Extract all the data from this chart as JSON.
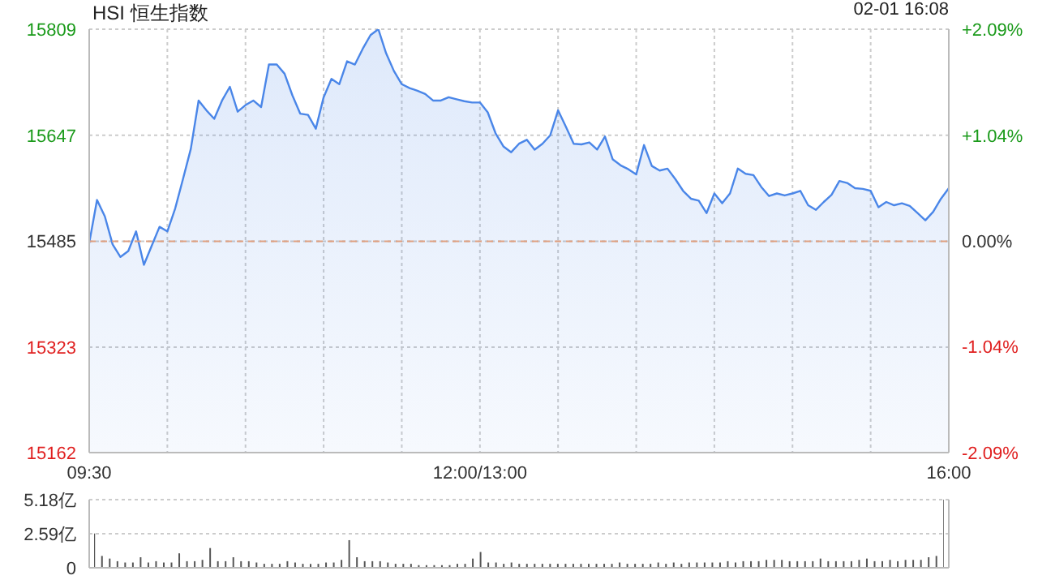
{
  "chart_data": [
    {
      "type": "area",
      "title": "HSI 恒生指数",
      "annotations": [
        "02-01 16:08"
      ],
      "color": "#4a86e8",
      "grid": true,
      "line_style": "solid",
      "categories": [
        "09:30",
        null,
        null,
        null,
        null,
        null,
        null,
        null,
        null,
        null,
        null,
        null,
        null,
        null,
        null,
        null,
        null,
        null,
        null,
        null,
        null,
        null,
        null,
        null,
        null,
        null,
        null,
        null,
        null,
        null,
        null,
        null,
        null,
        null,
        null,
        null,
        null,
        null,
        null,
        null,
        null,
        null,
        null,
        null,
        null,
        null,
        null,
        null,
        null,
        null,
        "12:00/13:00",
        null,
        null,
        null,
        null,
        null,
        null,
        null,
        null,
        null,
        null,
        null,
        null,
        null,
        null,
        null,
        null,
        null,
        null,
        null,
        null,
        null,
        null,
        null,
        null,
        null,
        null,
        null,
        null,
        null,
        null,
        null,
        null,
        null,
        null,
        null,
        null,
        null,
        null,
        null,
        null,
        null,
        null,
        null,
        null,
        null,
        null,
        null,
        null,
        null,
        null,
        null,
        null,
        null,
        null,
        null,
        null,
        null,
        null,
        null,
        "16:00"
      ],
      "values": [
        15482,
        15548,
        15523,
        15480,
        15461,
        15470,
        15500,
        15449,
        15478,
        15507,
        15500,
        15535,
        15580,
        15626,
        15700,
        15685,
        15672,
        15700,
        15721,
        15683,
        15693,
        15700,
        15690,
        15755,
        15755,
        15741,
        15708,
        15680,
        15678,
        15657,
        15705,
        15733,
        15725,
        15760,
        15755,
        15779,
        15800,
        15809,
        15772,
        15745,
        15725,
        15719,
        15715,
        15710,
        15700,
        15700,
        15705,
        15702,
        15699,
        15697,
        15697,
        15682,
        15650,
        15630,
        15621,
        15634,
        15640,
        15625,
        15634,
        15647,
        15685,
        15660,
        15634,
        15633,
        15636,
        15625,
        15645,
        15610,
        15601,
        15595,
        15587,
        15632,
        15600,
        15593,
        15596,
        15580,
        15562,
        15550,
        15547,
        15528,
        15558,
        15543,
        15558,
        15596,
        15588,
        15586,
        15568,
        15554,
        15558,
        15555,
        15558,
        15562,
        15540,
        15533,
        15545,
        15556,
        15577,
        15574,
        15566,
        15565,
        15562,
        15537,
        15545,
        15540,
        15543,
        15539,
        15528,
        15517,
        15530,
        15550,
        15566
      ],
      "ylim": [
        15162,
        15809
      ],
      "yticks": [
        15162,
        15323,
        15485,
        15647,
        15809
      ],
      "y2lim": [
        -2.09,
        2.09
      ],
      "y2ticks": [
        {
          "value": -2.09,
          "label": "-2.09%"
        },
        {
          "value": -1.04,
          "label": "-1.04%"
        },
        {
          "value": 0,
          "label": "0.00%"
        },
        {
          "value": 1.04,
          "label": "+1.04%"
        },
        {
          "value": 2.09,
          "label": "+2.09%"
        }
      ],
      "ref_lines": [
        {
          "axis": "y",
          "value": 15485,
          "color": "#e0a080",
          "line_style": "dashed"
        }
      ]
    },
    {
      "type": "bar",
      "color": "#555555",
      "grid": "y",
      "tick_labels": "y",
      "categories": [
        null,
        null,
        null,
        null,
        null,
        null,
        null,
        null,
        null,
        null,
        null,
        null,
        null,
        null,
        null,
        null,
        null,
        null,
        null,
        null,
        null,
        null,
        null,
        null,
        null,
        null,
        null,
        null,
        null,
        null,
        null,
        null,
        null,
        null,
        null,
        null,
        null,
        null,
        null,
        null,
        null,
        null,
        null,
        null,
        null,
        null,
        null,
        null,
        null,
        null,
        null,
        null,
        null,
        null,
        null,
        null,
        null,
        null,
        null,
        null,
        null,
        null,
        null,
        null,
        null,
        null,
        null,
        null,
        null,
        null,
        null,
        null,
        null,
        null,
        null,
        null,
        null,
        null,
        null,
        null,
        null,
        null,
        null,
        null,
        null,
        null,
        null,
        null,
        null,
        null,
        null,
        null,
        null,
        null,
        null,
        null,
        null,
        null,
        null,
        null,
        null,
        null,
        null,
        null,
        null,
        null,
        null,
        null,
        null,
        null,
        null
      ],
      "values": [
        2.6,
        0.9,
        0.7,
        0.5,
        0.4,
        0.4,
        0.8,
        0.4,
        0.5,
        0.4,
        0.4,
        1.1,
        0.5,
        0.5,
        0.6,
        1.5,
        0.5,
        0.5,
        0.8,
        0.5,
        0.5,
        0.4,
        0.3,
        0.3,
        0.3,
        0.5,
        0.4,
        0.3,
        0.3,
        0.3,
        0.4,
        0.4,
        0.6,
        2.1,
        0.8,
        0.5,
        0.5,
        0.5,
        0.4,
        0.3,
        0.3,
        0.3,
        0.2,
        0.2,
        0.2,
        0.2,
        0.2,
        0.3,
        0.3,
        0.7,
        1.2,
        0.4,
        0.4,
        0.3,
        0.4,
        0.3,
        0.3,
        0.3,
        0.3,
        0.3,
        0.3,
        0.3,
        0.3,
        0.3,
        0.3,
        0.3,
        0.3,
        0.3,
        0.4,
        0.3,
        0.3,
        0.3,
        0.3,
        0.4,
        0.3,
        0.4,
        0.3,
        0.4,
        0.4,
        0.4,
        0.4,
        0.4,
        0.5,
        0.4,
        0.5,
        0.5,
        0.5,
        0.6,
        0.6,
        0.6,
        0.5,
        0.5,
        0.5,
        0.5,
        0.7,
        0.5,
        0.5,
        0.5,
        0.5,
        0.6,
        0.7,
        0.5,
        0.5,
        0.6,
        0.5,
        0.6,
        0.6,
        0.6,
        0.8,
        0.9,
        5.18
      ],
      "ylim": [
        0,
        5.18
      ],
      "yticks": [
        0,
        {
          "value": 2.59,
          "label": "2.59亿"
        },
        {
          "value": 5.18,
          "label": "5.18亿"
        }
      ]
    }
  ]
}
